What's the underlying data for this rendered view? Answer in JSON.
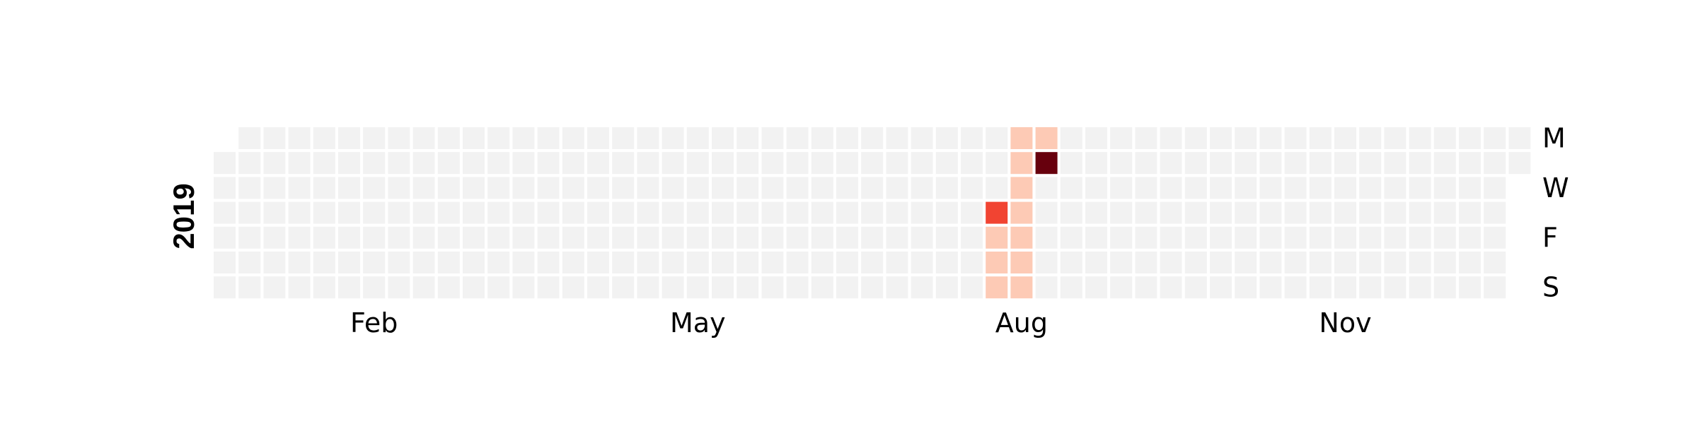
{
  "chart_data": {
    "type": "heatmap",
    "title": "2019",
    "year": 2019,
    "layout": "calendar (weeks as columns, weekdays as rows, Monday first)",
    "colors": {
      "empty": "#f2f2f2",
      "cmap": [
        "#fff5f0",
        "#fdcab5",
        "#fc8a6a",
        "#f14432",
        "#bc141a",
        "#67000d"
      ]
    },
    "month_labels": [
      "Feb",
      "May",
      "Aug",
      "Nov"
    ],
    "weekday_labels": [
      "M",
      "W",
      "F",
      "S"
    ],
    "values": [
      {
        "date": "2019-08-09",
        "value": 0.1
      },
      {
        "date": "2019-08-10",
        "value": 0.1
      },
      {
        "date": "2019-08-11",
        "value": 0.1
      },
      {
        "date": "2019-08-12",
        "value": 0.1
      },
      {
        "date": "2019-08-13",
        "value": 0.1
      },
      {
        "date": "2019-08-14",
        "value": 0.1
      },
      {
        "date": "2019-08-15",
        "value": 0.1
      },
      {
        "date": "2019-08-16",
        "value": 0.1
      },
      {
        "date": "2019-08-17",
        "value": 0.1
      },
      {
        "date": "2019-08-18",
        "value": 0.1
      },
      {
        "date": "2019-08-19",
        "value": 0.1
      },
      {
        "date": "2019-08-08",
        "value": 0.6
      },
      {
        "date": "2019-08-20",
        "value": 1.0
      }
    ]
  }
}
